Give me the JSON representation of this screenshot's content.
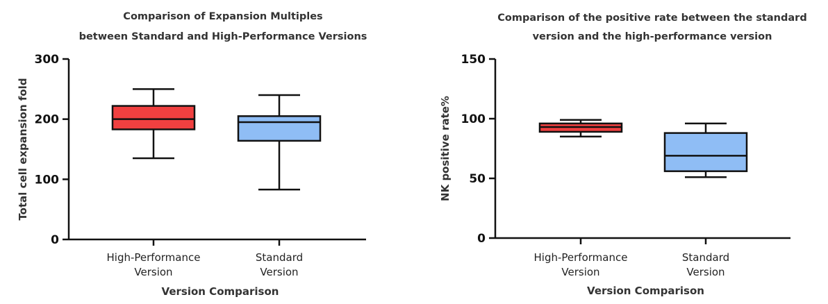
{
  "chart_data": [
    {
      "type": "box",
      "title_lines": [
        "Comparison of Expansion Multiples",
        "between Standard and High-Performance Versions"
      ],
      "xlabel": "Version Comparison",
      "ylabel": "Total cell expansion fold",
      "ylim": [
        0,
        300
      ],
      "yticks": [
        "0",
        "100",
        "200",
        "300"
      ],
      "categories": [
        {
          "label_lines": [
            "High-Performance",
            "Version"
          ],
          "color": "#f04040",
          "min": 135,
          "q1": 183,
          "median": 200,
          "q3": 222,
          "max": 250
        },
        {
          "label_lines": [
            "Standard",
            "Version"
          ],
          "color": "#8fbdf5",
          "min": 83,
          "q1": 164,
          "median": 195,
          "q3": 205,
          "max": 240
        }
      ]
    },
    {
      "type": "box",
      "title_lines": [
        "Comparison of the positive rate between the standard",
        "version and the high-performance version"
      ],
      "xlabel": "Version Comparison",
      "ylabel": "NK positive rate%",
      "ylim": [
        0,
        150
      ],
      "yticks": [
        "0",
        "50",
        "100",
        "150"
      ],
      "categories": [
        {
          "label_lines": [
            "High-Performance",
            "Version"
          ],
          "color": "#f04040",
          "min": 85,
          "q1": 89,
          "median": 93,
          "q3": 96,
          "max": 99
        },
        {
          "label_lines": [
            "Standard",
            "Version"
          ],
          "color": "#8fbdf5",
          "min": 51,
          "q1": 56,
          "median": 69,
          "q3": 88,
          "max": 96
        }
      ]
    }
  ]
}
